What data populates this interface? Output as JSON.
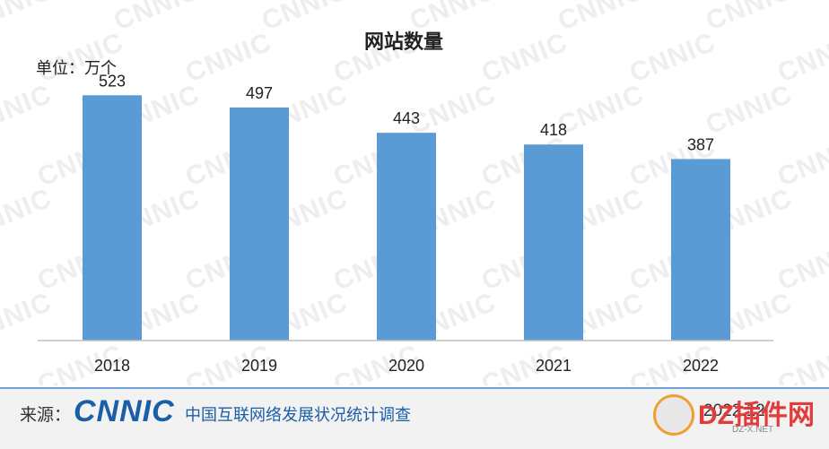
{
  "watermark_text": "CNNIC",
  "chart_data": {
    "type": "bar",
    "title": "网站数量",
    "unit_label": "单位：万个",
    "categories": [
      "2018",
      "2019",
      "2020",
      "2021",
      "2022"
    ],
    "values": [
      523,
      497,
      443,
      418,
      387
    ],
    "ylim": [
      0,
      600
    ],
    "bar_color": "#5b9bd5",
    "grid": false,
    "legend": "none"
  },
  "footer": {
    "source_label": "来源：",
    "logo_text": "CNNIC",
    "org_name": "中国互联网络发展状况统计调查",
    "date_text": "2022.12",
    "accent_color": "#1a5ea8"
  },
  "site_badge": {
    "name": "DZ插件网",
    "domain": "DZ-X.NET",
    "icon": "dz-logo-icon"
  }
}
